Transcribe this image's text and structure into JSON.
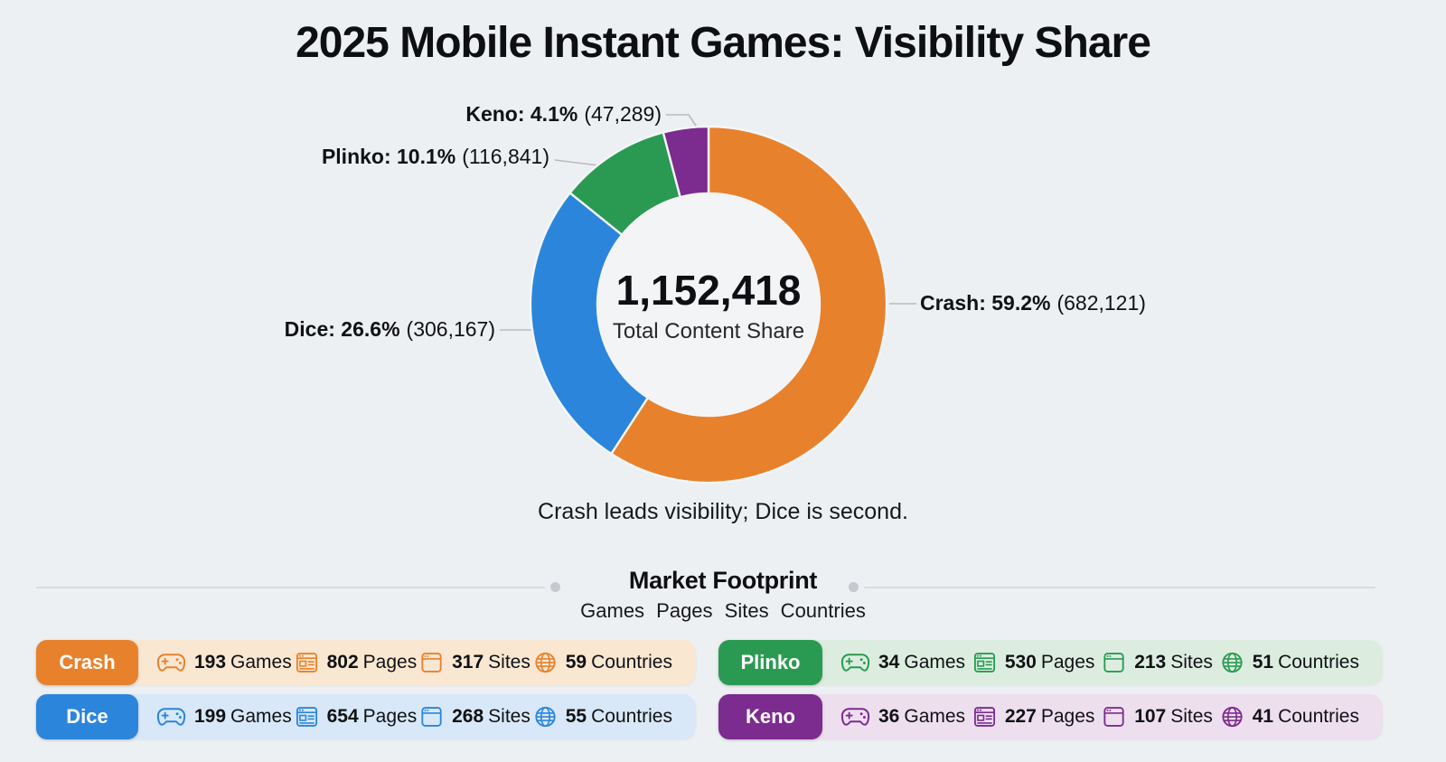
{
  "chart_data": [
    {
      "type": "pie",
      "subtype": "donut",
      "title": "2025 Mobile Instant Games: Visibility Share",
      "center_value": "1,152,418",
      "center_label": "Total Content Share",
      "caption": "Crash leads visibility; Dice is second.",
      "total": 1152418,
      "legend_position": "callouts",
      "start_angle_deg": -90,
      "direction": "clockwise",
      "segments": [
        {
          "name": "Crash",
          "value": 682121,
          "pct": 59.2,
          "color": "#E8812C",
          "callout_bold": "Crash: 59.2%",
          "callout_paren": "(682,121)"
        },
        {
          "name": "Dice",
          "value": 306167,
          "pct": 26.6,
          "color": "#2B85DB",
          "callout_bold": "Dice: 26.6%",
          "callout_paren": "(306,167)"
        },
        {
          "name": "Plinko",
          "value": 116841,
          "pct": 10.1,
          "color": "#2A9A52",
          "callout_bold": "Plinko: 10.1%",
          "callout_paren": "(116,841)"
        },
        {
          "name": "Keno",
          "value": 47289,
          "pct": 4.1,
          "color": "#7C2B8E",
          "callout_bold": "Keno: 4.1%",
          "callout_paren": "(47,289)"
        }
      ]
    },
    {
      "type": "table",
      "title": "Market Footprint",
      "subtitle": "Games Pages Sites Countries",
      "columns": [
        "Games",
        "Pages",
        "Sites",
        "Countries"
      ],
      "rows": [
        {
          "name": "Crash",
          "color": "#E8812C",
          "bg": "#F9E7D2",
          "stats": [
            {
              "icon": "gamepad-icon",
              "value": "193",
              "unit": "Games"
            },
            {
              "icon": "pages-icon",
              "value": "802",
              "unit": "Pages"
            },
            {
              "icon": "browser-icon",
              "value": "317",
              "unit": "Sites"
            },
            {
              "icon": "globe-icon",
              "value": "59",
              "unit": "Countries"
            }
          ]
        },
        {
          "name": "Dice",
          "color": "#2B85DB",
          "bg": "#D8E8F8",
          "stats": [
            {
              "icon": "gamepad-icon",
              "value": "199",
              "unit": "Games"
            },
            {
              "icon": "pages-icon",
              "value": "654",
              "unit": "Pages"
            },
            {
              "icon": "browser-icon",
              "value": "268",
              "unit": "Sites"
            },
            {
              "icon": "globe-icon",
              "value": "55",
              "unit": "Countries"
            }
          ]
        },
        {
          "name": "Plinko",
          "color": "#2A9A52",
          "bg": "#DCEDE0",
          "stats": [
            {
              "icon": "gamepad-icon",
              "value": "34",
              "unit": "Games"
            },
            {
              "icon": "pages-icon",
              "value": "530",
              "unit": "Pages"
            },
            {
              "icon": "browser-icon",
              "value": "213",
              "unit": "Sites"
            },
            {
              "icon": "globe-icon",
              "value": "51",
              "unit": "Countries"
            }
          ]
        },
        {
          "name": "Keno",
          "color": "#7C2B8E",
          "bg": "#EEDFEF",
          "stats": [
            {
              "icon": "gamepad-icon",
              "value": "36",
              "unit": "Games"
            },
            {
              "icon": "pages-icon",
              "value": "227",
              "unit": "Pages"
            },
            {
              "icon": "browser-icon",
              "value": "107",
              "unit": "Sites"
            },
            {
              "icon": "globe-icon",
              "value": "41",
              "unit": "Countries"
            }
          ]
        }
      ]
    }
  ]
}
